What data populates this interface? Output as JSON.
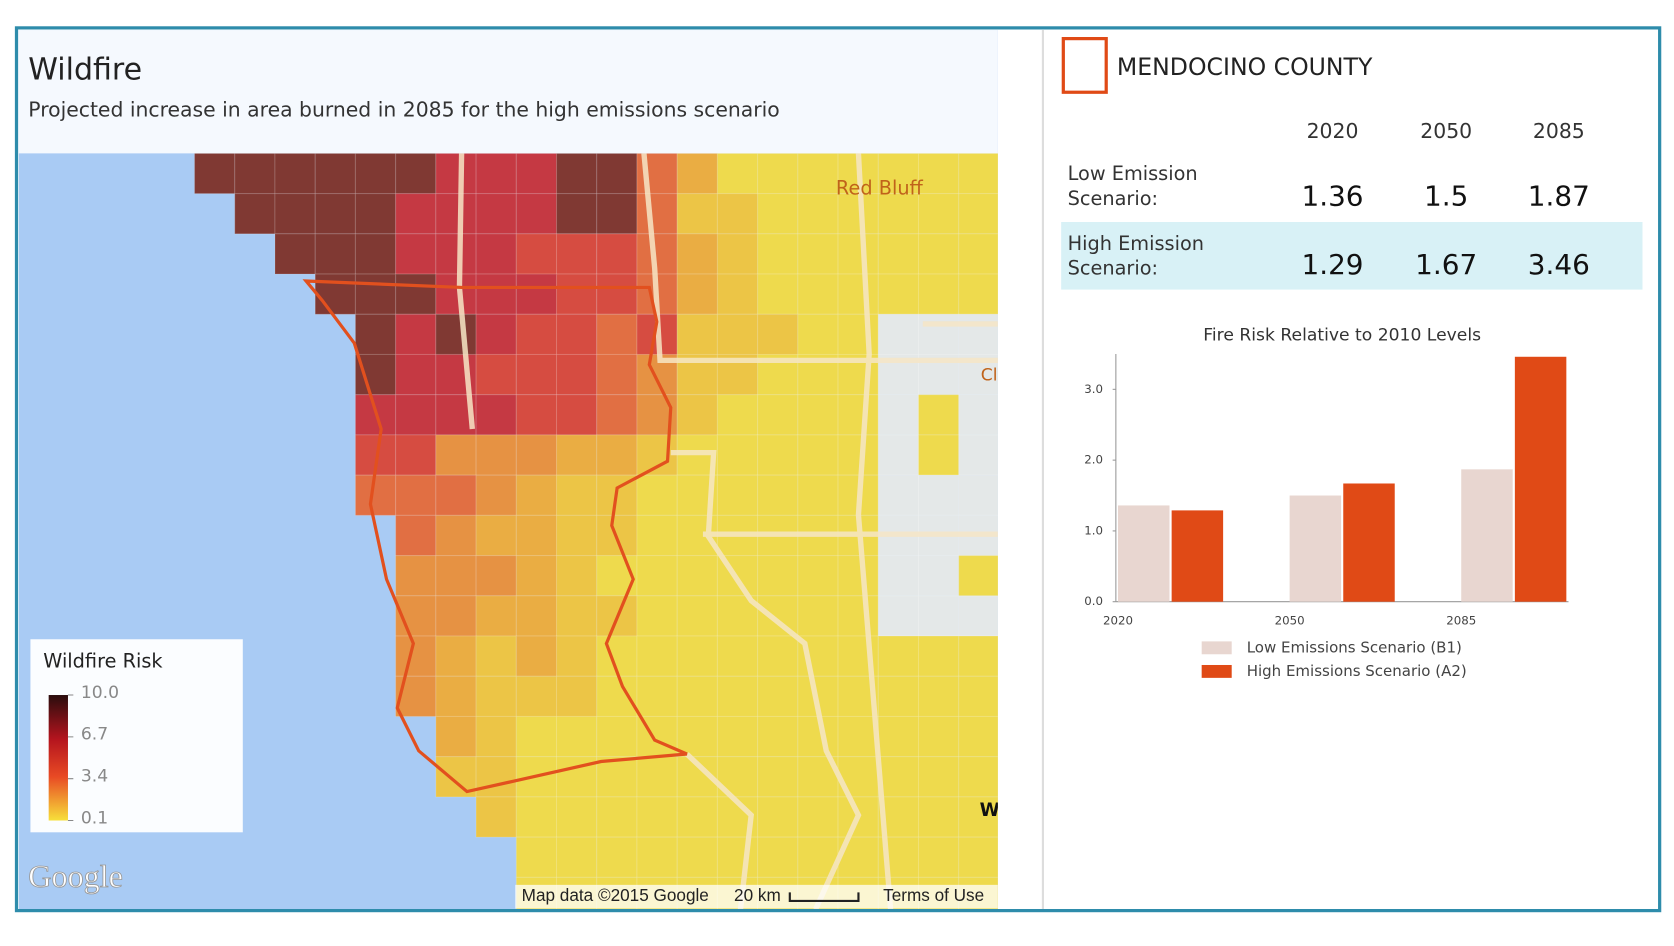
{
  "map": {
    "title": "Wildfire",
    "subtitle": "Projected increase in area burned in 2085 for the high emissions scenario",
    "places": [
      "Red Bluff",
      "Cl",
      "W"
    ],
    "logo": "Google",
    "attribution": "Map data ©2015 Google",
    "scale": "20 km",
    "terms": "Terms of Use"
  },
  "legend": {
    "title": "Wildfire Risk",
    "ticks": [
      {
        "value": 10,
        "label": "10.0"
      },
      {
        "value": 6.7,
        "label": "6.7"
      },
      {
        "value": 3.4,
        "label": "3.4"
      },
      {
        "value": 0.1,
        "label": "0.1"
      }
    ]
  },
  "county": {
    "name": "MENDOCINO COUNTY"
  },
  "table": {
    "columns": [
      "2020",
      "2050",
      "2085"
    ],
    "rows": [
      {
        "label": "Low Emission Scenario:",
        "values": [
          1.36,
          1.5,
          1.87
        ]
      },
      {
        "label": "High Emission Scenario:",
        "values": [
          1.29,
          1.67,
          3.46
        ]
      }
    ]
  },
  "chart_data": {
    "type": "bar",
    "title": "Fire Risk Relative to 2010 Levels",
    "categories": [
      "2020",
      "2050",
      "2085"
    ],
    "series": [
      {
        "name": "Low Emissions Scenario (B1)",
        "color": "#e8d6d0",
        "values": [
          1.36,
          1.5,
          1.87
        ]
      },
      {
        "name": "High Emissions Scenario (A2)",
        "color": "#e04a16",
        "values": [
          1.29,
          1.67,
          3.46
        ]
      }
    ],
    "ylim": [
      0,
      3.5
    ],
    "yticks": [
      {
        "value": 0,
        "label": "0.0"
      },
      {
        "value": 1,
        "label": "1.0"
      },
      {
        "value": 2,
        "label": "2.0"
      },
      {
        "value": 3,
        "label": "3.0"
      }
    ]
  }
}
